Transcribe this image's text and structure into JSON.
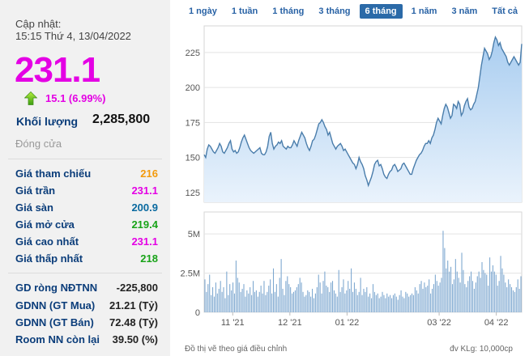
{
  "stock": {
    "update_label": "Cập nhật:",
    "update_time": "15:15 Thứ 4, 13/04/2022",
    "price": "231.1",
    "change": "15.1 (6.99%)",
    "volume_label": "Khối lượng",
    "volume": "2,285,800",
    "status": "Đóng cửa",
    "prices": [
      {
        "label": "Giá tham chiếu",
        "value": "216",
        "color": "#f39a0c"
      },
      {
        "label": "Giá trần",
        "value": "231.1",
        "color": "#e400e4"
      },
      {
        "label": "Giá sàn",
        "value": "200.9",
        "color": "#0a6aa0"
      },
      {
        "label": "Giá mở cửa",
        "value": "219.4",
        "color": "#18a318"
      },
      {
        "label": "Giá cao nhất",
        "value": "231.1",
        "color": "#e400e4"
      },
      {
        "label": "Giá thấp nhất",
        "value": "218",
        "color": "#18a318"
      }
    ],
    "foreign": [
      {
        "label": "GD ròng NĐTNN",
        "value": "-225,800"
      },
      {
        "label": "GDNN (GT Mua)",
        "value": "21.21 (Tỷ)"
      },
      {
        "label": "GDNN (GT Bán)",
        "value": "72.48 (Tỷ)"
      },
      {
        "label": "Room NN còn lại",
        "value": "39.50 (%)"
      }
    ]
  },
  "range_tabs": {
    "items": [
      "1 ngày",
      "1 tuần",
      "1 tháng",
      "3 tháng",
      "6 tháng",
      "1 năm",
      "3 năm",
      "Tất cả"
    ],
    "active": "6 tháng"
  },
  "chart_data": [
    {
      "type": "area",
      "title": "",
      "ylim": [
        118,
        244
      ],
      "yticks": [
        125,
        150,
        175,
        200,
        225
      ],
      "values": [
        152,
        150,
        156,
        159,
        158,
        156,
        154,
        153,
        155,
        157,
        160,
        158,
        154,
        153,
        155,
        157,
        160,
        162,
        156,
        154,
        155,
        153,
        154,
        157,
        161,
        164,
        166,
        163,
        160,
        157,
        155,
        154,
        153,
        154,
        155,
        156,
        157,
        153,
        152,
        152,
        154,
        158,
        165,
        168,
        160,
        156,
        158,
        159,
        161,
        160,
        162,
        158,
        157,
        156,
        158,
        157,
        157,
        159,
        162,
        160,
        158,
        162,
        165,
        168,
        166,
        164,
        160,
        157,
        155,
        158,
        162,
        163,
        166,
        170,
        174,
        175,
        177,
        175,
        172,
        170,
        166,
        168,
        164,
        160,
        158,
        156,
        158,
        159,
        160,
        158,
        155,
        156,
        154,
        152,
        150,
        148,
        146,
        145,
        142,
        145,
        150,
        147,
        145,
        142,
        137,
        134,
        130,
        133,
        136,
        140,
        145,
        147,
        148,
        144,
        145,
        142,
        138,
        136,
        135,
        138,
        140,
        141,
        144,
        145,
        143,
        140,
        141,
        142,
        145,
        146,
        144,
        142,
        140,
        138,
        138,
        142,
        145,
        148,
        150,
        152,
        153,
        155,
        158,
        160,
        160,
        162,
        160,
        164,
        166,
        170,
        175,
        178,
        176,
        174,
        180,
        185,
        188,
        186,
        182,
        178,
        180,
        188,
        187,
        185,
        190,
        188,
        180,
        182,
        187,
        190,
        192,
        186,
        184,
        185,
        188,
        190,
        195,
        200,
        208,
        216,
        222,
        228,
        226,
        224,
        220,
        222,
        226,
        232,
        236,
        234,
        230,
        232,
        228,
        226,
        224,
        222,
        218,
        216,
        218,
        220,
        222,
        220,
        218,
        216,
        218,
        231.1
      ]
    },
    {
      "type": "bar",
      "ylim": [
        0,
        6.4
      ],
      "yticks": [
        0,
        2.5,
        5
      ],
      "ytick_labels": [
        "0",
        "2.5M",
        "5M"
      ],
      "xtick_labels": [
        "11 '21",
        "12 '21",
        "01 '22",
        "03 '22",
        "04 '22"
      ],
      "values": [
        2.1,
        1.3,
        1.8,
        2.4,
        1.1,
        1.6,
        1.0,
        1.9,
        1.2,
        1.5,
        2.0,
        1.3,
        1.6,
        0.9,
        2.6,
        1.1,
        1.8,
        1.4,
        1.9,
        1.2,
        3.3,
        2.2,
        1.9,
        1.3,
        1.5,
        1.8,
        1.0,
        1.4,
        1.2,
        1.6,
        1.1,
        2.0,
        1.3,
        1.4,
        1.0,
        1.3,
        1.7,
        1.2,
        2.0,
        1.1,
        1.3,
        1.7,
        2.1,
        1.2,
        2.8,
        1.3,
        1.8,
        1.0,
        2.2,
        3.4,
        1.5,
        1.1,
        2.0,
        2.3,
        1.8,
        1.6,
        1.2,
        1.3,
        1.4,
        1.6,
        1.8,
        2.2,
        1.9,
        1.3,
        1.0,
        1.1,
        1.4,
        1.3,
        1.0,
        1.5,
        0.9,
        1.2,
        1.6,
        2.4,
        1.9,
        1.2,
        2.0,
        2.6,
        1.7,
        1.6,
        1.3,
        1.9,
        2.0,
        1.4,
        1.2,
        1.0,
        2.7,
        1.3,
        1.6,
        2.1,
        1.2,
        1.4,
        2.0,
        1.5,
        2.8,
        1.3,
        1.9,
        1.5,
        1.1,
        1.3,
        2.2,
        1.1,
        1.5,
        1.3,
        1.6,
        1.0,
        1.2,
        0.9,
        1.8,
        1.3,
        1.1,
        1.2,
        0.9,
        1.0,
        1.3,
        1.1,
        0.9,
        1.2,
        1.0,
        1.1,
        0.9,
        1.1,
        1.2,
        1.0,
        0.8,
        1.1,
        1.4,
        1.0,
        0.9,
        1.3,
        1.2,
        1.0,
        1.1,
        1.2,
        1.1,
        1.6,
        1.4,
        1.2,
        1.8,
        2.0,
        1.5,
        1.9,
        1.6,
        1.7,
        2.1,
        1.2,
        1.5,
        1.8,
        2.4,
        2.0,
        1.7,
        1.9,
        2.2,
        5.2,
        4.1,
        2.8,
        3.3,
        2.6,
        2.9,
        1.8,
        2.1,
        3.4,
        2.6,
        2.2,
        1.9,
        3.8,
        2.7,
        1.8,
        1.6,
        2.0,
        2.3,
        2.6,
        2.0,
        1.5,
        1.9,
        2.3,
        2.6,
        2.2,
        3.2,
        2.7,
        2.5,
        2.4,
        1.7,
        3.5,
        2.6,
        3.0,
        2.6,
        2.4,
        1.7,
        2.0,
        3.6,
        2.8,
        2.4,
        1.9,
        1.6,
        2.1,
        1.8,
        1.6,
        1.4,
        1.3,
        1.6,
        2.1,
        1.5,
        2.3
      ]
    }
  ],
  "footnotes": {
    "left": "Đồ thị vẽ theo giá điều chỉnh",
    "right": "đv KLg: 10,000cp"
  },
  "colors": {
    "accent": "#2b6aa8",
    "line": "#4a7dab",
    "bars": "#7ba6cf",
    "price": "#e400e4"
  }
}
